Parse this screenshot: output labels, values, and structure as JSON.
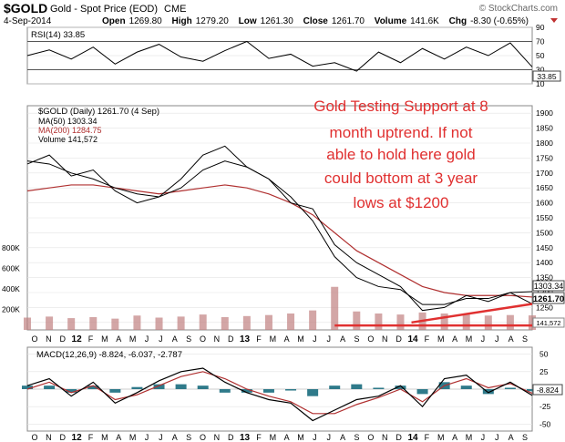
{
  "header": {
    "symbol": "$GOLD",
    "description": "Gold - Spot Price (EOD)",
    "exchange": "CME",
    "date": "4-Sep-2014",
    "open_label": "Open",
    "open": "1269.80",
    "high_label": "High",
    "high": "1279.20",
    "low_label": "Low",
    "low": "1261.30",
    "close_label": "Close",
    "close": "1261.70",
    "volume_label": "Volume",
    "volume": "141.6K",
    "chg_label": "Chg",
    "chg": "-8.30 (-0.65%)",
    "source": "© StockCharts.com"
  },
  "colors": {
    "price": "#000000",
    "ma50": "#000000",
    "ma200": "#b03030",
    "volume": "#c08080",
    "macd_hist": "#2f7a8a",
    "support": "#e03030",
    "annotation": "#e03030"
  },
  "chart_data": [
    {
      "type": "line",
      "name": "rsi-panel",
      "legend": "RSI(14) 33.85",
      "y_ticks": [
        "90",
        "70",
        "50",
        "30",
        "10"
      ],
      "ylim": [
        10,
        90
      ],
      "reference_lines": [
        70,
        30
      ],
      "last_label": "33.85",
      "series": [
        {
          "name": "RSI(14)",
          "x": [
            0,
            1,
            2,
            3,
            4,
            5,
            6,
            7,
            8,
            9,
            10,
            11,
            12,
            13,
            14,
            15,
            16,
            17,
            18,
            19,
            20,
            21,
            22,
            23
          ],
          "values": [
            50,
            58,
            45,
            62,
            38,
            55,
            66,
            48,
            42,
            57,
            70,
            46,
            52,
            35,
            40,
            28,
            55,
            40,
            60,
            45,
            62,
            50,
            68,
            34
          ]
        }
      ]
    },
    {
      "type": "line",
      "name": "price-panel",
      "legend_title": "$GOLD (Daily) 1261.70 (4 Sep)",
      "legend_ma50": "MA(50) 1303.34",
      "legend_ma200": "MA(200) 1284.75",
      "legend_volume": "Volume 141,572",
      "y_ticks": [
        "1900",
        "1850",
        "1800",
        "1750",
        "1700",
        "1650",
        "1600",
        "1550",
        "1500",
        "1450",
        "1400",
        "1350",
        "1300",
        "1250",
        "1200"
      ],
      "ylim": [
        1175,
        1925
      ],
      "volume_ticks": [
        "800K",
        "600K",
        "400K",
        "200K"
      ],
      "volume_lim": [
        0,
        800000
      ],
      "last_labels": [
        "1303.34",
        "1261.70",
        "141,572"
      ],
      "annotation": [
        "Gold Testing Support at 8",
        "month uptrend.  If not",
        "able to hold here gold",
        "could bottom at 3 year",
        "lows at $1200"
      ],
      "x": [
        0,
        1,
        2,
        3,
        4,
        5,
        6,
        7,
        8,
        9,
        10,
        11,
        12,
        13,
        14,
        15,
        16,
        17,
        18,
        19,
        20,
        21,
        22,
        23
      ],
      "series": [
        {
          "name": "$GOLD",
          "values": [
            1730,
            1760,
            1690,
            1710,
            1640,
            1600,
            1620,
            1680,
            1760,
            1790,
            1720,
            1680,
            1600,
            1580,
            1460,
            1400,
            1360,
            1320,
            1240,
            1250,
            1290,
            1270,
            1300,
            1262
          ]
        },
        {
          "name": "MA(50)",
          "values": [
            1740,
            1730,
            1700,
            1680,
            1650,
            1630,
            1620,
            1650,
            1710,
            1740,
            1720,
            1680,
            1620,
            1540,
            1420,
            1350,
            1320,
            1310,
            1260,
            1260,
            1280,
            1280,
            1300,
            1303
          ]
        },
        {
          "name": "MA(200)",
          "values": [
            1640,
            1650,
            1660,
            1660,
            1650,
            1640,
            1630,
            1640,
            1650,
            1660,
            1650,
            1630,
            1600,
            1560,
            1500,
            1440,
            1400,
            1360,
            1320,
            1300,
            1290,
            1290,
            1290,
            1285
          ]
        },
        {
          "name": "Volume",
          "values": [
            120000,
            130000,
            115000,
            125000,
            110000,
            140000,
            120000,
            130000,
            150000,
            125000,
            135000,
            145000,
            160000,
            190000,
            420000,
            180000,
            160000,
            150000,
            170000,
            160000,
            150000,
            140000,
            145000,
            141572
          ]
        }
      ],
      "support_line": {
        "from": [
          14,
          1190
        ],
        "to": [
          23,
          1190
        ]
      },
      "trend_line": {
        "from": [
          17.5,
          1200
        ],
        "to": [
          23,
          1262
        ]
      }
    },
    {
      "type": "line",
      "name": "macd-panel",
      "legend": "MACD(12,26,9) -8.824, -6.037, -2.787",
      "y_ticks": [
        "50",
        "25",
        "0",
        "-25",
        "-50"
      ],
      "ylim": [
        -60,
        60
      ],
      "last_label": "-8.824",
      "x": [
        0,
        1,
        2,
        3,
        4,
        5,
        6,
        7,
        8,
        9,
        10,
        11,
        12,
        13,
        14,
        15,
        16,
        17,
        18,
        19,
        20,
        21,
        22,
        23
      ],
      "series": [
        {
          "name": "MACD",
          "values": [
            5,
            15,
            -10,
            10,
            -20,
            -5,
            12,
            25,
            30,
            10,
            -5,
            -15,
            -20,
            -45,
            -30,
            -15,
            -10,
            5,
            -25,
            15,
            20,
            -5,
            10,
            -9
          ]
        },
        {
          "name": "Signal",
          "values": [
            0,
            10,
            -5,
            5,
            -15,
            -8,
            5,
            18,
            25,
            15,
            0,
            -10,
            -18,
            -35,
            -35,
            -22,
            -12,
            0,
            -18,
            5,
            15,
            2,
            8,
            -6
          ]
        },
        {
          "name": "Histogram",
          "values": [
            5,
            5,
            -5,
            5,
            -5,
            3,
            7,
            7,
            5,
            -5,
            -5,
            -5,
            -2,
            -10,
            5,
            7,
            2,
            5,
            -7,
            10,
            5,
            -7,
            2,
            -3
          ]
        }
      ]
    }
  ],
  "x_axis": {
    "labels": [
      "O",
      "N",
      "D",
      "12",
      "F",
      "M",
      "A",
      "M",
      "J",
      "J",
      "A",
      "S",
      "O",
      "N",
      "D",
      "13",
      "F",
      "M",
      "A",
      "M",
      "J",
      "J",
      "A",
      "S",
      "O",
      "N",
      "D",
      "14",
      "F",
      "M",
      "A",
      "M",
      "J",
      "J",
      "A",
      "S"
    ],
    "year_labels": [
      "12",
      "13",
      "14"
    ]
  }
}
